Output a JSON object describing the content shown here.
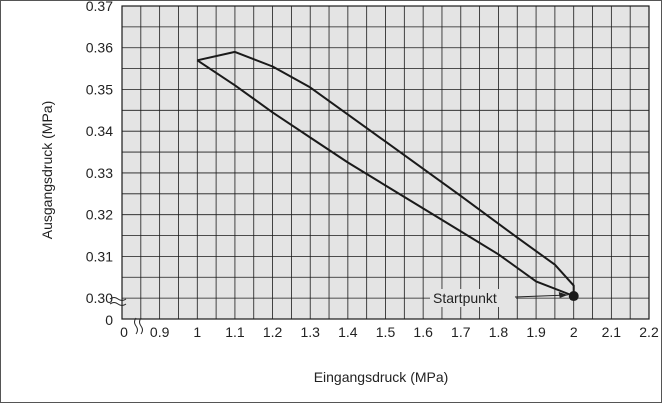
{
  "chart_data": {
    "type": "line",
    "xlabel": "Eingangsdruck (MPa)",
    "ylabel": "Ausgangsdruck (MPa)",
    "xlim": [
      0.8,
      2.2
    ],
    "ylim": [
      0.295,
      0.37
    ],
    "x_ticks": [
      0.9,
      1,
      1.1,
      1.2,
      1.3,
      1.4,
      1.5,
      1.6,
      1.7,
      1.8,
      1.9,
      2,
      2.1,
      2.2
    ],
    "x_tick_labels": [
      "0.9",
      "1",
      "1.1",
      "1.2",
      "1.3",
      "1.4",
      "1.5",
      "1.6",
      "1.7",
      "1.8",
      "1.9",
      "2",
      "2.1",
      "2.2"
    ],
    "y_ticks": [
      0.3,
      0.31,
      0.32,
      0.33,
      0.34,
      0.35,
      0.36,
      0.37
    ],
    "y_tick_labels": [
      "0.30",
      "0.31",
      "0.32",
      "0.33",
      "0.34",
      "0.35",
      "0.36",
      "0.37"
    ],
    "x_break_label": "0",
    "y_break_label": "0",
    "axis_break": true,
    "grid": true,
    "series": [
      {
        "values_upper": [
          [
            2.0,
            0.3005
          ],
          [
            2.0,
            0.303
          ],
          [
            1.95,
            0.308
          ],
          [
            1.85,
            0.3145
          ],
          [
            1.7,
            0.3245
          ],
          [
            1.5,
            0.3375
          ],
          [
            1.3,
            0.3505
          ],
          [
            1.2,
            0.3555
          ],
          [
            1.1,
            0.359
          ],
          [
            1.0,
            0.357
          ]
        ],
        "values_lower": [
          [
            1.0,
            0.357
          ],
          [
            1.1,
            0.351
          ],
          [
            1.2,
            0.3445
          ],
          [
            1.3,
            0.3385
          ],
          [
            1.4,
            0.3325
          ],
          [
            1.5,
            0.327
          ],
          [
            1.6,
            0.3215
          ],
          [
            1.7,
            0.316
          ],
          [
            1.8,
            0.3105
          ],
          [
            1.9,
            0.304
          ],
          [
            2.0,
            0.3005
          ]
        ]
      }
    ],
    "start_point": {
      "x": 2.0,
      "y": 0.3005
    },
    "annotation": "Startpunkt",
    "colors": {
      "grid_bg": "#e4e4e4",
      "grid_line": "#1a1a1a",
      "curve": "#1a1a1a"
    }
  }
}
